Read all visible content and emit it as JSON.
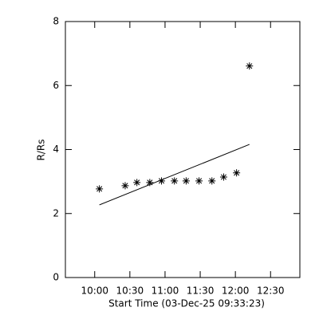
{
  "chart_data": {
    "type": "scatter",
    "xlabel": "Start Time (03-Dec-25 09:33:23)",
    "ylabel": "R/Rs",
    "xlim": [
      575,
      775
    ],
    "xticks": [
      {
        "value": 600,
        "label": "10:00"
      },
      {
        "value": 630,
        "label": "10:30"
      },
      {
        "value": 660,
        "label": "11:00"
      },
      {
        "value": 690,
        "label": "11:30"
      },
      {
        "value": 720,
        "label": "12:00"
      },
      {
        "value": 750,
        "label": "12:30"
      }
    ],
    "ylim": [
      0,
      8
    ],
    "yticks": [
      0,
      2,
      4,
      6,
      8
    ],
    "color": "#000000",
    "series": [
      {
        "marker": "asterisk",
        "x": [
          604,
          626,
          636,
          647,
          657,
          668,
          678,
          689,
          700,
          710,
          721,
          732
        ],
        "values": [
          2.77,
          2.87,
          2.97,
          2.97,
          3.02,
          3.02,
          3.02,
          3.02,
          3.02,
          3.14,
          3.27,
          6.61
        ]
      },
      {
        "marker": "line",
        "x": [
          604,
          732
        ],
        "values": [
          2.27,
          4.16
        ]
      }
    ]
  }
}
